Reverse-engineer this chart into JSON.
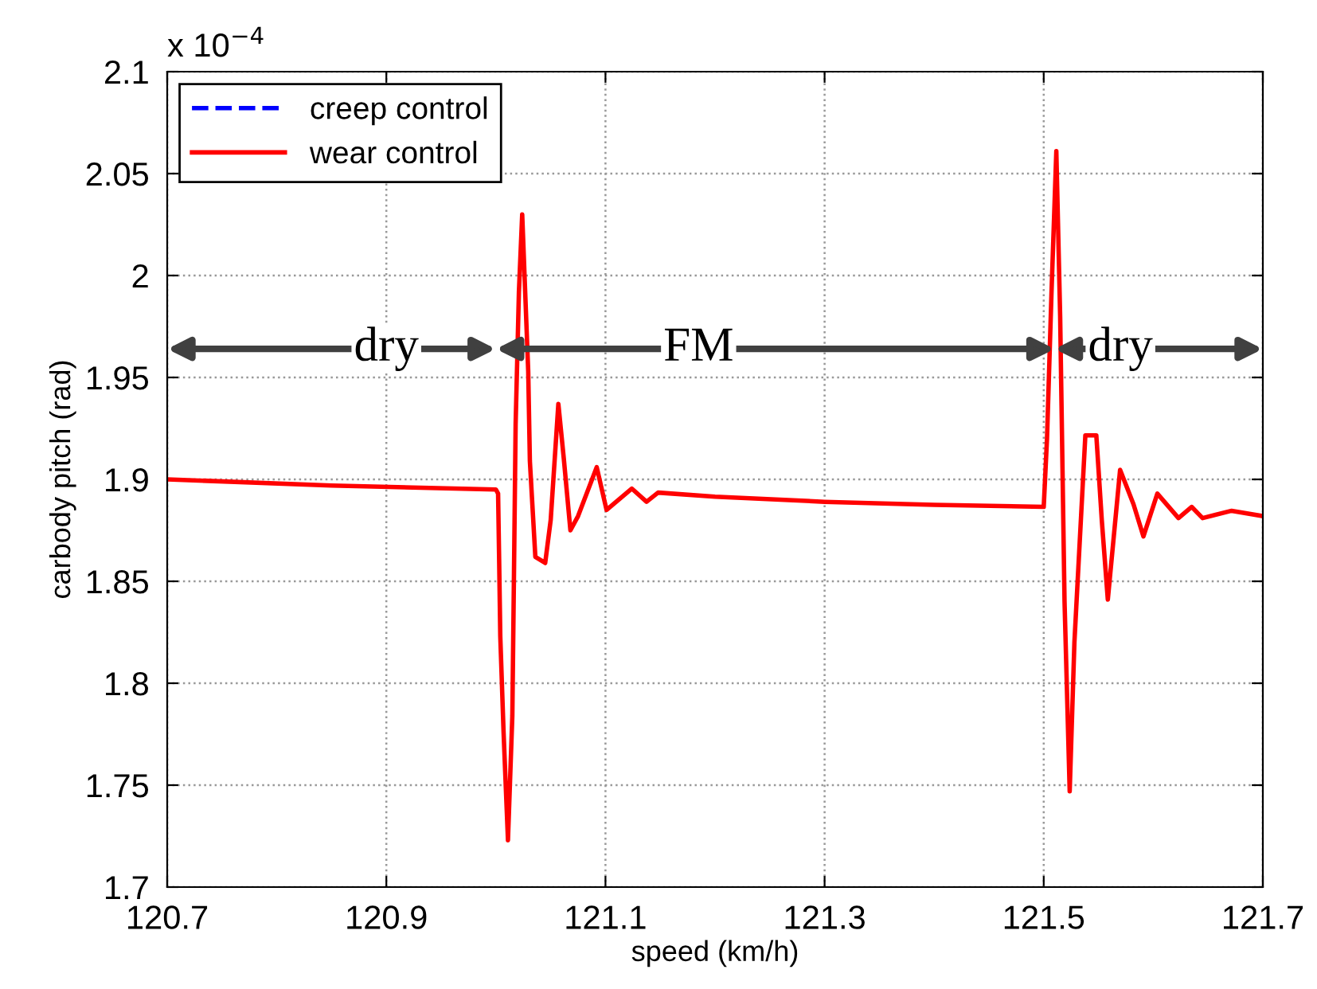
{
  "chart_data": {
    "type": "line",
    "xlabel": "speed (km/h)",
    "ylabel": "carbody pitch (rad)",
    "xlim": [
      120.7,
      121.7
    ],
    "xticks": [
      120.7,
      120.9,
      121.1,
      121.3,
      121.5,
      121.7
    ],
    "ylim": [
      1.7,
      2.1
    ],
    "yticks": [
      1.7,
      1.75,
      1.8,
      1.85,
      1.9,
      1.95,
      2,
      2.05,
      2.1
    ],
    "grid": true,
    "legend": "top left",
    "annotations": [
      "x 10$^{−4}$",
      "dry",
      "FM",
      "dry"
    ],
    "series": [
      {
        "name": "creep control",
        "color": "#0000ff",
        "line_style": "dashed",
        "values": [
          null
        ]
      },
      {
        "name": "wear control",
        "color": "#ff0000",
        "line_style": "solid",
        "x": [
          120.7,
          120.85,
          121.0,
          121.002,
          121.003,
          121.004,
          121.007,
          121.011,
          121.015,
          121.0165,
          121.018,
          121.021,
          121.024,
          121.0295,
          121.031,
          121.036,
          121.045,
          121.05,
          121.057,
          121.062,
          121.068,
          121.075,
          121.092,
          121.101,
          121.124,
          121.1375,
          121.148,
          121.2,
          121.3,
          121.4,
          121.5,
          121.503,
          121.507,
          121.5115,
          121.515,
          121.519,
          121.5237,
          121.528,
          121.538,
          121.548,
          121.553,
          121.5585,
          121.5697,
          121.582,
          121.591,
          121.6037,
          121.623,
          121.635,
          121.645,
          121.6715,
          121.7
        ],
        "values": [
          1.9,
          1.897,
          1.895,
          1.893,
          1.859,
          1.823,
          1.776,
          1.723,
          1.784,
          1.854,
          1.927,
          1.992,
          2.03,
          1.953,
          1.909,
          1.862,
          1.859,
          1.88,
          1.937,
          1.91,
          1.875,
          1.882,
          1.906,
          1.885,
          1.8955,
          1.889,
          1.8935,
          1.8915,
          1.889,
          1.8875,
          1.8865,
          1.92,
          1.99,
          2.061,
          1.98,
          1.84,
          1.747,
          1.82,
          1.9216,
          1.9216,
          1.88,
          1.841,
          1.9047,
          1.8877,
          1.872,
          1.893,
          1.881,
          1.8865,
          1.881,
          1.8846,
          1.882
        ]
      }
    ]
  }
}
